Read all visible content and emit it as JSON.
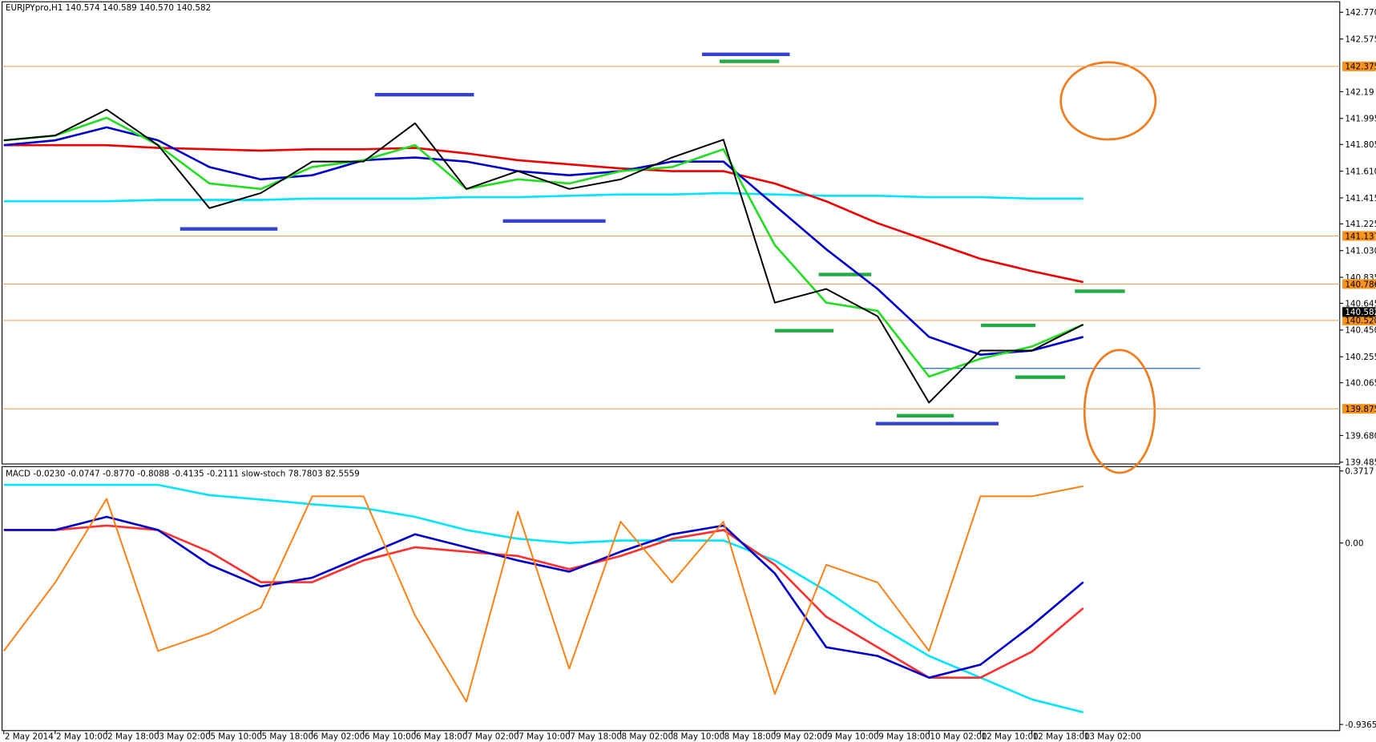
{
  "chart_data": [
    {
      "type": "line",
      "title": "EURJPYpro,H1  140.574 140.589 140.570 140.582",
      "ylim": [
        139.485,
        142.77
      ],
      "yticks": [
        {
          "value": 142.77,
          "label": "142.770"
        },
        142.575,
        142.19,
        141.995,
        141.805,
        {
          "value": 141.61,
          "label": "141.610"
        },
        141.415,
        141.225,
        {
          "value": 141.03,
          "label": "141.030"
        },
        140.835,
        140.645,
        {
          "value": 140.45,
          "label": "140.450"
        },
        140.255,
        140.065,
        {
          "value": 139.68,
          "label": "139.680"
        },
        139.485
      ],
      "levels": [
        {
          "value": 142.375,
          "label": "142.375"
        },
        {
          "value": 141.137,
          "label": "141.137"
        },
        {
          "value": 140.786,
          "label": "140.786"
        },
        {
          "value": 140.52,
          "label": "140.520"
        },
        {
          "value": 139.875,
          "label": "139.875"
        }
      ],
      "last_price": {
        "value": 140.582,
        "label": "140.582"
      },
      "series": [
        {
          "color": "#00e5ff",
          "values": [
            141.39,
            141.39,
            141.39,
            141.4,
            141.4,
            141.4,
            141.41,
            141.41,
            141.41,
            141.42,
            141.42,
            141.43,
            141.44,
            141.44,
            141.45,
            141.44,
            141.43,
            141.43,
            141.42,
            141.42,
            141.41,
            141.41
          ]
        },
        {
          "color": "#ee0000",
          "values": [
            141.8,
            141.8,
            141.8,
            141.78,
            141.77,
            141.76,
            141.77,
            141.77,
            141.78,
            141.74,
            141.69,
            141.66,
            141.63,
            141.61,
            141.61,
            141.52,
            141.39,
            141.23,
            141.1,
            140.97,
            140.88,
            140.8
          ]
        },
        {
          "color": "#0000cc",
          "values": [
            141.8,
            141.835,
            141.93,
            141.835,
            141.64,
            141.55,
            141.58,
            141.69,
            141.71,
            141.68,
            141.61,
            141.58,
            141.61,
            141.68,
            141.68,
            141.36,
            141.04,
            140.75,
            140.4,
            140.27,
            140.3,
            140.4
          ]
        },
        {
          "color": "#22dd22",
          "values": [
            141.835,
            141.87,
            142.0,
            141.8,
            141.52,
            141.48,
            141.64,
            141.69,
            141.8,
            141.48,
            141.55,
            141.52,
            141.61,
            141.64,
            141.77,
            141.07,
            140.65,
            140.59,
            140.11,
            140.24,
            140.33,
            140.49
          ]
        },
        {
          "color": "#000000",
          "values": [
            141.835,
            141.87,
            142.06,
            141.8,
            141.34,
            141.45,
            141.68,
            141.68,
            141.96,
            141.48,
            141.61,
            141.48,
            141.55,
            141.71,
            141.84,
            140.65,
            140.75,
            140.55,
            139.92,
            140.3,
            140.3,
            140.49
          ]
        }
      ]
    },
    {
      "type": "line",
      "title": "MACD -0.0230 -0.0747 -0.8770 -0.8088 -0.4135 -0.2111  slow-stoch 78.7803 82.5559",
      "categories": [
        "2 May 2014",
        "2 May 10:00",
        "2 May 18:00",
        "3 May 02:00",
        "5 May 10:00",
        "5 May 18:00",
        "6 May 02:00",
        "6 May 10:00",
        "6 May 18:00",
        "7 May 02:00",
        "7 May 10:00",
        "7 May 18:00",
        "8 May 02:00",
        "8 May 10:00",
        "8 May 18:00",
        "9 May 02:00",
        "9 May 10:00",
        "9 May 18:00",
        "10 May 02:00",
        "12 May 10:00",
        "12 May 18:00",
        "13 May 02:00"
      ],
      "ylim": [
        -0.9365,
        0.3717
      ],
      "yticks": [
        0.3717,
        {
          "value": 0,
          "label": "0.00"
        },
        -0.9365
      ],
      "y2lim": [
        0,
        100
      ],
      "series": [
        {
          "color": "#00e5ff",
          "values": [
            0.3,
            0.3,
            0.3,
            0.3,
            0.247,
            0.224,
            0.2,
            0.18,
            0.135,
            0.067,
            0.022,
            0,
            0.013,
            0.013,
            0.013,
            -0.09,
            -0.247,
            -0.426,
            -0.583,
            -0.695,
            -0.807,
            -0.874
          ]
        },
        {
          "color": "#ff3030",
          "values": [
            0.067,
            0.067,
            0.09,
            0.067,
            -0.045,
            -0.202,
            -0.202,
            -0.09,
            -0.022,
            -0.045,
            -0.067,
            -0.135,
            -0.067,
            0.022,
            0.067,
            -0.112,
            -0.381,
            -0.538,
            -0.695,
            -0.695,
            -0.561,
            -0.336
          ]
        },
        {
          "color": "#0000cc",
          "values": [
            0.067,
            0.067,
            0.135,
            0.067,
            -0.112,
            -0.224,
            -0.179,
            -0.067,
            0.045,
            -0.022,
            -0.09,
            -0.148,
            -0.045,
            0.045,
            0.09,
            -0.157,
            -0.538,
            -0.583,
            -0.695,
            -0.628,
            -0.426,
            -0.202
          ]
        },
        {
          "color": "#ff7f11",
          "axis": "y2",
          "values": [
            29,
            56,
            89,
            29,
            36,
            46,
            90,
            90,
            43,
            9,
            84,
            22,
            80,
            56,
            80,
            12,
            63,
            56,
            29,
            90,
            90,
            94
          ]
        }
      ]
    }
  ]
}
